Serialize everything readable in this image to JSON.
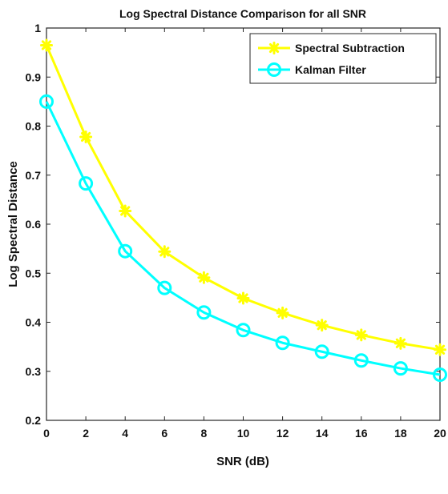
{
  "chart_data": {
    "type": "line",
    "title": "Log Spectral Distance Comparison for all SNR",
    "xlabel": "SNR (dB)",
    "ylabel": "Log Spectral Distance",
    "x": [
      0,
      2,
      4,
      6,
      8,
      10,
      12,
      14,
      16,
      18,
      20
    ],
    "xlim": [
      0,
      20
    ],
    "ylim": [
      0.2,
      1
    ],
    "xticks": [
      "0",
      "2",
      "4",
      "6",
      "8",
      "10",
      "12",
      "14",
      "16",
      "18",
      "20"
    ],
    "yticks": [
      "0.2",
      "0.3",
      "0.4",
      "0.5",
      "0.6",
      "0.7",
      "0.8",
      "0.9",
      "1"
    ],
    "grid": false,
    "legend_position": "top-right",
    "series": [
      {
        "name": "Spectral Subtraction",
        "color": "#ffff00",
        "marker": "asterisk",
        "values": [
          0.965,
          0.778,
          0.627,
          0.544,
          0.491,
          0.449,
          0.419,
          0.394,
          0.374,
          0.357,
          0.344
        ]
      },
      {
        "name": "Kalman Filter",
        "color": "#00ffff",
        "marker": "circle",
        "values": [
          0.85,
          0.683,
          0.545,
          0.47,
          0.42,
          0.384,
          0.358,
          0.34,
          0.322,
          0.306,
          0.293
        ]
      }
    ]
  }
}
